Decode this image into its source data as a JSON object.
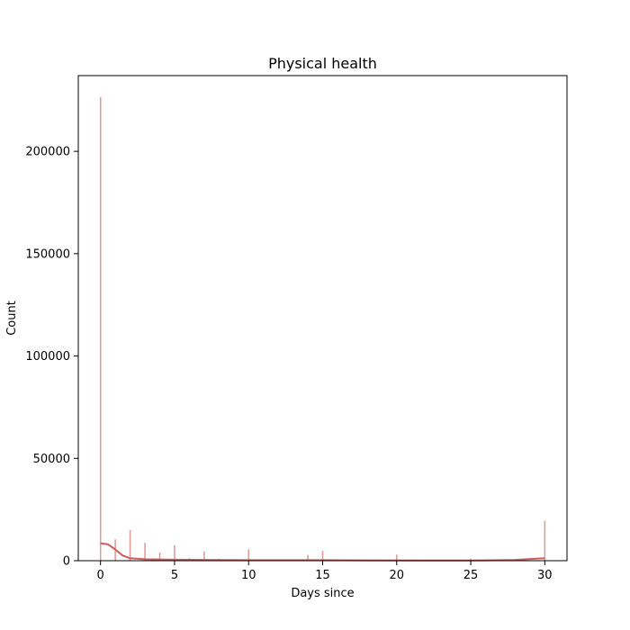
{
  "chart_data": {
    "type": "bar",
    "title": "Physical health",
    "xlabel": "Days since",
    "ylabel": "Count",
    "xlim": [
      -1.5,
      31.5
    ],
    "ylim": [
      0,
      237000
    ],
    "xticks": [
      0,
      5,
      10,
      15,
      20,
      25,
      30
    ],
    "yticks": [
      0,
      50000,
      100000,
      150000,
      200000
    ],
    "grid": false,
    "bar_color": "#d98d86",
    "kde_color": "#cd5c5c",
    "bars": [
      {
        "x": 0,
        "count": 226500
      },
      {
        "x": 1,
        "count": 10500
      },
      {
        "x": 2,
        "count": 15000
      },
      {
        "x": 3,
        "count": 8800
      },
      {
        "x": 4,
        "count": 4000
      },
      {
        "x": 5,
        "count": 7500
      },
      {
        "x": 6,
        "count": 1200
      },
      {
        "x": 7,
        "count": 4500
      },
      {
        "x": 8,
        "count": 1000
      },
      {
        "x": 10,
        "count": 5500
      },
      {
        "x": 12,
        "count": 600
      },
      {
        "x": 14,
        "count": 2800
      },
      {
        "x": 15,
        "count": 4800
      },
      {
        "x": 20,
        "count": 3000
      },
      {
        "x": 21,
        "count": 600
      },
      {
        "x": 25,
        "count": 1000
      },
      {
        "x": 30,
        "count": 19500
      }
    ],
    "kde": [
      {
        "x": 0,
        "y": 8500
      },
      {
        "x": 0.5,
        "y": 8000
      },
      {
        "x": 1,
        "y": 5500
      },
      {
        "x": 1.5,
        "y": 2500
      },
      {
        "x": 2,
        "y": 1200
      },
      {
        "x": 3,
        "y": 700
      },
      {
        "x": 5,
        "y": 500
      },
      {
        "x": 8,
        "y": 350
      },
      {
        "x": 10,
        "y": 300
      },
      {
        "x": 13,
        "y": 300
      },
      {
        "x": 15,
        "y": 250
      },
      {
        "x": 18,
        "y": 150
      },
      {
        "x": 22,
        "y": 100
      },
      {
        "x": 26,
        "y": 150
      },
      {
        "x": 28,
        "y": 400
      },
      {
        "x": 29,
        "y": 800
      },
      {
        "x": 30,
        "y": 1200
      }
    ]
  }
}
